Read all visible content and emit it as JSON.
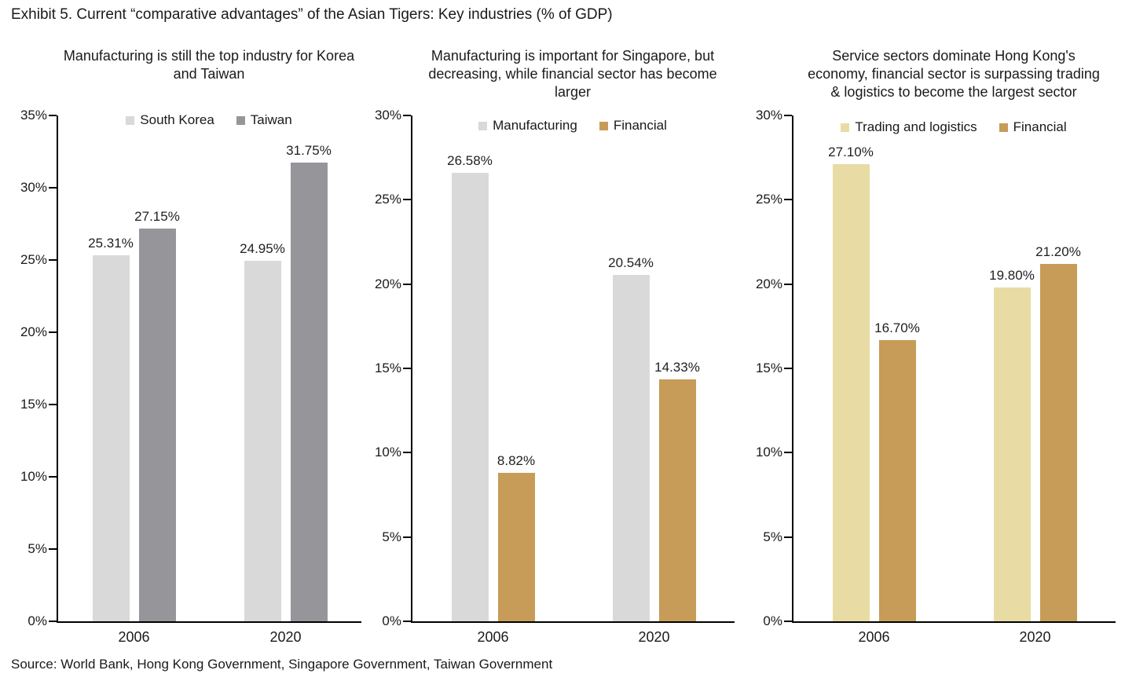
{
  "page": {
    "title": "Exhibit 5. Current “comparative advantages” of the Asian Tigers: Key industries (% of GDP)",
    "source": "Source: World Bank, Hong Kong Government, Singapore Government, Taiwan Government"
  },
  "colors": {
    "light_gray": "#d9d9d9",
    "dark_gray": "#96969a",
    "tan": "#c79b58",
    "cream": "#e8dca4",
    "axis": "#000000",
    "text": "#1a1a1a"
  },
  "chart_data": [
    {
      "type": "bar",
      "title": "Manufacturing is still the top industry for Korea and Taiwan",
      "categories": [
        "2006",
        "2020"
      ],
      "series": [
        {
          "name": "South Korea",
          "color": "#d9d9d9",
          "values": [
            25.31,
            24.95
          ],
          "labels": [
            "25.31%",
            "24.95%"
          ]
        },
        {
          "name": "Taiwan",
          "color": "#96969a",
          "values": [
            27.15,
            31.75
          ],
          "labels": [
            "27.15%",
            "31.75%"
          ]
        }
      ],
      "xlabel": "",
      "ylabel": "",
      "ylim": [
        0,
        35
      ],
      "ytick_step": 5,
      "ytick_suffix": "%",
      "grid": false,
      "legend_position": "top"
    },
    {
      "type": "bar",
      "title": "Manufacturing is important for Singapore, but decreasing, while financial sector has become larger",
      "categories": [
        "2006",
        "2020"
      ],
      "series": [
        {
          "name": "Manufacturing",
          "color": "#d9d9d9",
          "values": [
            26.58,
            20.54
          ],
          "labels": [
            "26.58%",
            "20.54%"
          ]
        },
        {
          "name": "Financial",
          "color": "#c79b58",
          "values": [
            8.82,
            14.33
          ],
          "labels": [
            "8.82%",
            "14.33%"
          ]
        }
      ],
      "xlabel": "",
      "ylabel": "",
      "ylim": [
        0,
        30
      ],
      "ytick_step": 5,
      "ytick_suffix": "%",
      "grid": false,
      "legend_position": "top"
    },
    {
      "type": "bar",
      "title": "Service sectors dominate Hong Kong's economy, financial sector is surpassing trading & logistics to become the largest sector",
      "categories": [
        "2006",
        "2020"
      ],
      "series": [
        {
          "name": "Trading and logistics",
          "color": "#e8dca4",
          "values": [
            27.1,
            19.8
          ],
          "labels": [
            "27.10%",
            "19.80%"
          ]
        },
        {
          "name": "Financial",
          "color": "#c79b58",
          "values": [
            16.7,
            21.2
          ],
          "labels": [
            "16.70%",
            "21.20%"
          ]
        }
      ],
      "xlabel": "",
      "ylabel": "",
      "ylim": [
        0,
        30
      ],
      "ytick_step": 5,
      "ytick_suffix": "%",
      "grid": false,
      "legend_position": "top"
    }
  ]
}
